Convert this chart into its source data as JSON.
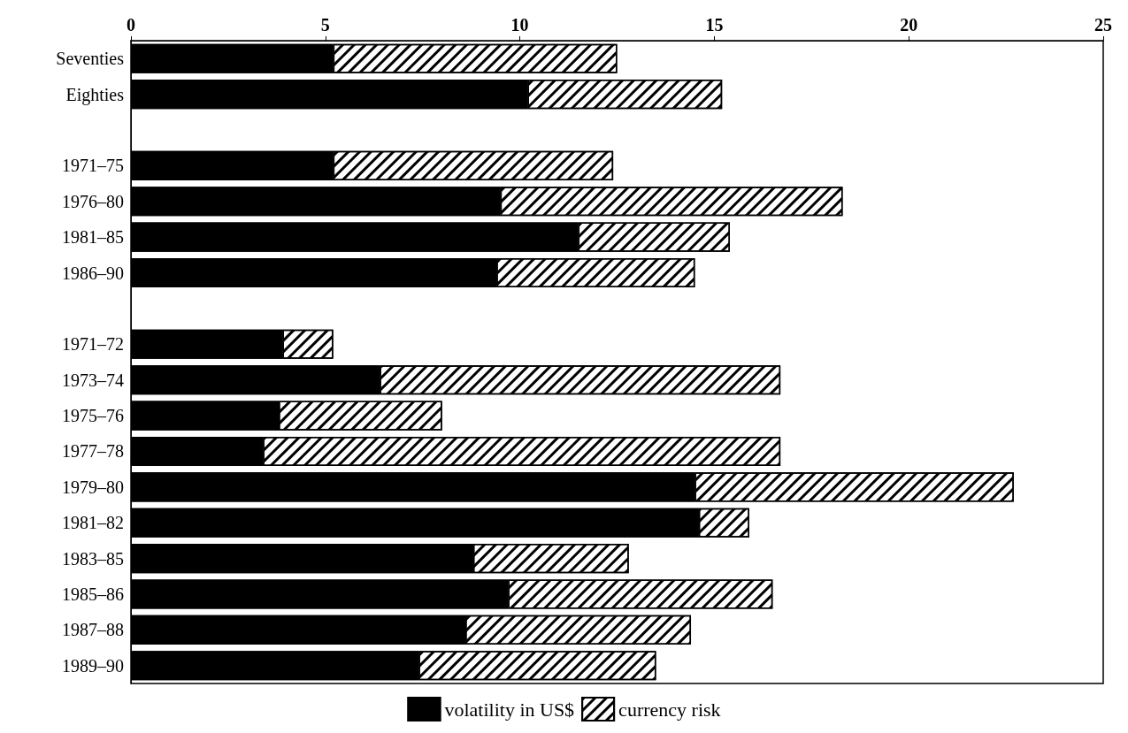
{
  "chart_data": {
    "type": "bar",
    "orientation": "horizontal",
    "stacked": true,
    "categories": [
      "Seventies",
      "Eighties",
      null,
      "1971–75",
      "1976–80",
      "1981–85",
      "1986–90",
      null,
      "1971–72",
      "1973–74",
      "1975–76",
      "1977–78",
      "1979–80",
      "1981–82",
      "1983–85",
      "1985–86",
      "1987–88",
      "1989–90"
    ],
    "series": [
      {
        "name": "volatility in US$",
        "color": "#000000",
        "values": [
          5.2,
          10.2,
          null,
          5.2,
          9.5,
          11.5,
          9.4,
          null,
          3.9,
          6.4,
          3.8,
          3.4,
          14.5,
          14.6,
          8.8,
          9.7,
          8.6,
          7.4
        ]
      },
      {
        "name": "currency risk",
        "color": "#ffffff",
        "values": [
          7.3,
          5.0,
          null,
          7.2,
          8.8,
          3.9,
          5.1,
          null,
          1.3,
          10.3,
          4.2,
          13.3,
          8.2,
          1.3,
          4.0,
          6.8,
          5.8,
          6.1
        ]
      }
    ],
    "xlim": [
      0,
      25
    ],
    "xticks": [
      0,
      5,
      10,
      15,
      20,
      25
    ],
    "grid": false,
    "legend": "bottom"
  }
}
